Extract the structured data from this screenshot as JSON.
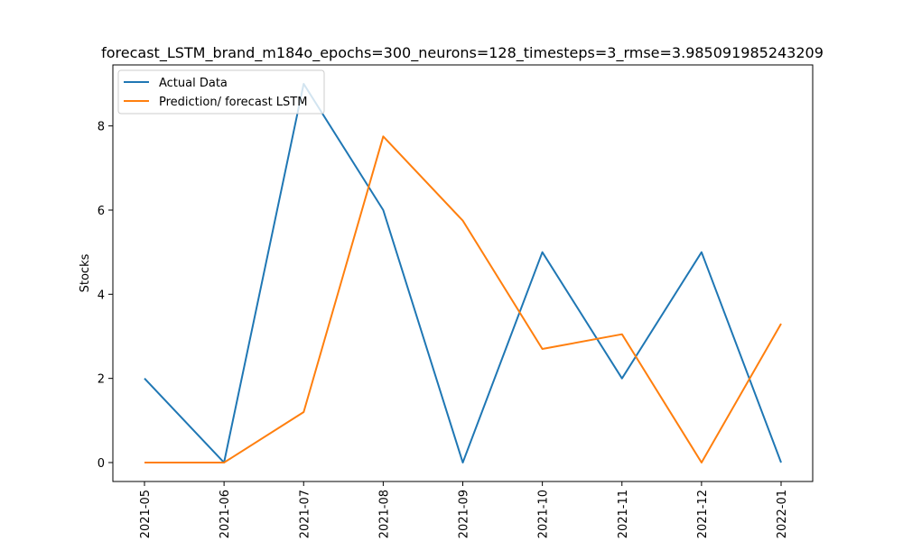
{
  "chart_data": {
    "type": "line",
    "title": "forecast_LSTM_brand_m184o_epochs=300_neurons=128_timesteps=3_rmse=3.985091985243209",
    "xlabel": "",
    "ylabel": "Stocks",
    "categories": [
      "2021-05",
      "2021-06",
      "2021-07",
      "2021-08",
      "2021-09",
      "2021-10",
      "2021-11",
      "2021-12",
      "2022-01"
    ],
    "ylim": [
      -0.45,
      9.45
    ],
    "yticks": [
      0,
      2,
      4,
      6,
      8
    ],
    "grid": false,
    "legend_position": "upper-left",
    "series": [
      {
        "name": "Actual Data",
        "color": "#1f77b4",
        "values": [
          2,
          0,
          9,
          6,
          0,
          5,
          2,
          5,
          0
        ]
      },
      {
        "name": "Prediction/ forecast LSTM",
        "color": "#ff7f0e",
        "values": [
          0,
          0,
          1.2,
          7.75,
          5.75,
          2.7,
          3.05,
          0,
          3.3
        ]
      }
    ]
  }
}
